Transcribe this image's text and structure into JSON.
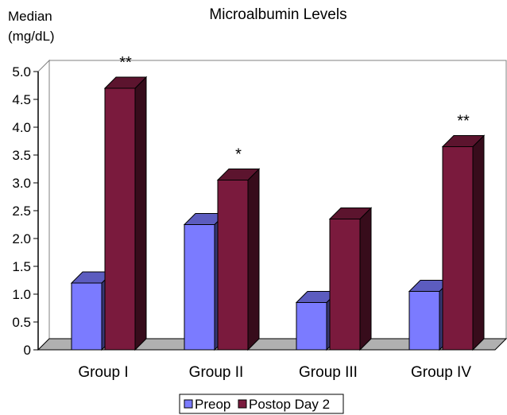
{
  "chart_data": {
    "type": "bar",
    "title": "Microalbumin Levels",
    "ylabel_line1": "Median",
    "ylabel_line2": "(mg/dL)",
    "xlabel": "",
    "ylim": [
      0,
      5.0
    ],
    "yticks": [
      "0",
      "0.5",
      "1.0",
      "1.5",
      "2.0",
      "2.5",
      "3.0",
      "3.5",
      "4.0",
      "4.5",
      "5.0"
    ],
    "categories": [
      "Group I",
      "Group II",
      "Group III",
      "Group IV"
    ],
    "series": [
      {
        "name": "Preop",
        "values": [
          1.2,
          2.25,
          0.85,
          1.05
        ],
        "color": "#7b7bff"
      },
      {
        "name": "Postop Day 2",
        "values": [
          4.7,
          3.05,
          2.35,
          3.65
        ],
        "color": "#7a1a3d"
      }
    ],
    "annotations": [
      "**",
      "*",
      "",
      "**"
    ],
    "legend": "bottom",
    "grid": false
  }
}
